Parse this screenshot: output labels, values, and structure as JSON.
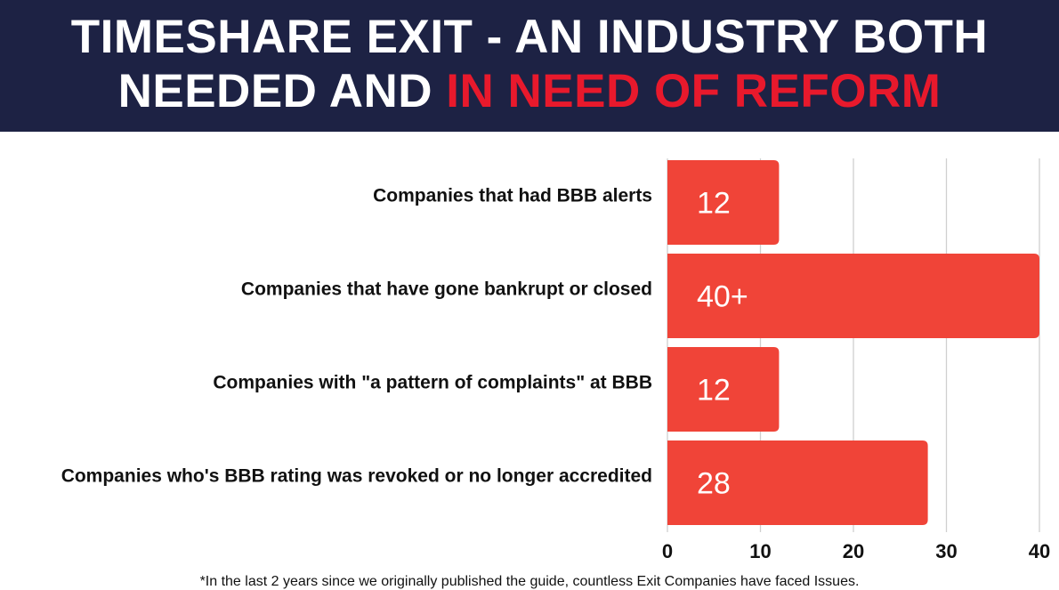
{
  "header": {
    "title_line1": "TIMESHARE EXIT - AN INDUSTRY BOTH",
    "title_line2_plain": "NEEDED AND ",
    "title_line2_highlight": "IN NEED OF REFORM"
  },
  "colors": {
    "header_bg": "#1d2244",
    "highlight": "#e8192c",
    "bar": "#f04438",
    "grid": "#cfcfcf"
  },
  "chart_data": {
    "type": "bar",
    "orientation": "horizontal",
    "categories": [
      "Companies that had BBB alerts",
      "Companies that have gone bankrupt or closed",
      "Companies with \"a pattern of complaints\" at BBB",
      "Companies who's BBB rating was revoked or no longer accredited"
    ],
    "values": [
      12,
      40,
      12,
      28
    ],
    "data_labels": [
      "12",
      "40+",
      "12",
      "28"
    ],
    "xlim": [
      0,
      40
    ],
    "xticks": [
      0,
      10,
      20,
      30,
      40
    ],
    "xtick_labels": [
      "0",
      "10",
      "20",
      "30",
      "40"
    ],
    "grid": true
  },
  "footnote": "*In the last 2 years since we originally published the guide, countless Exit Companies have faced Issues."
}
